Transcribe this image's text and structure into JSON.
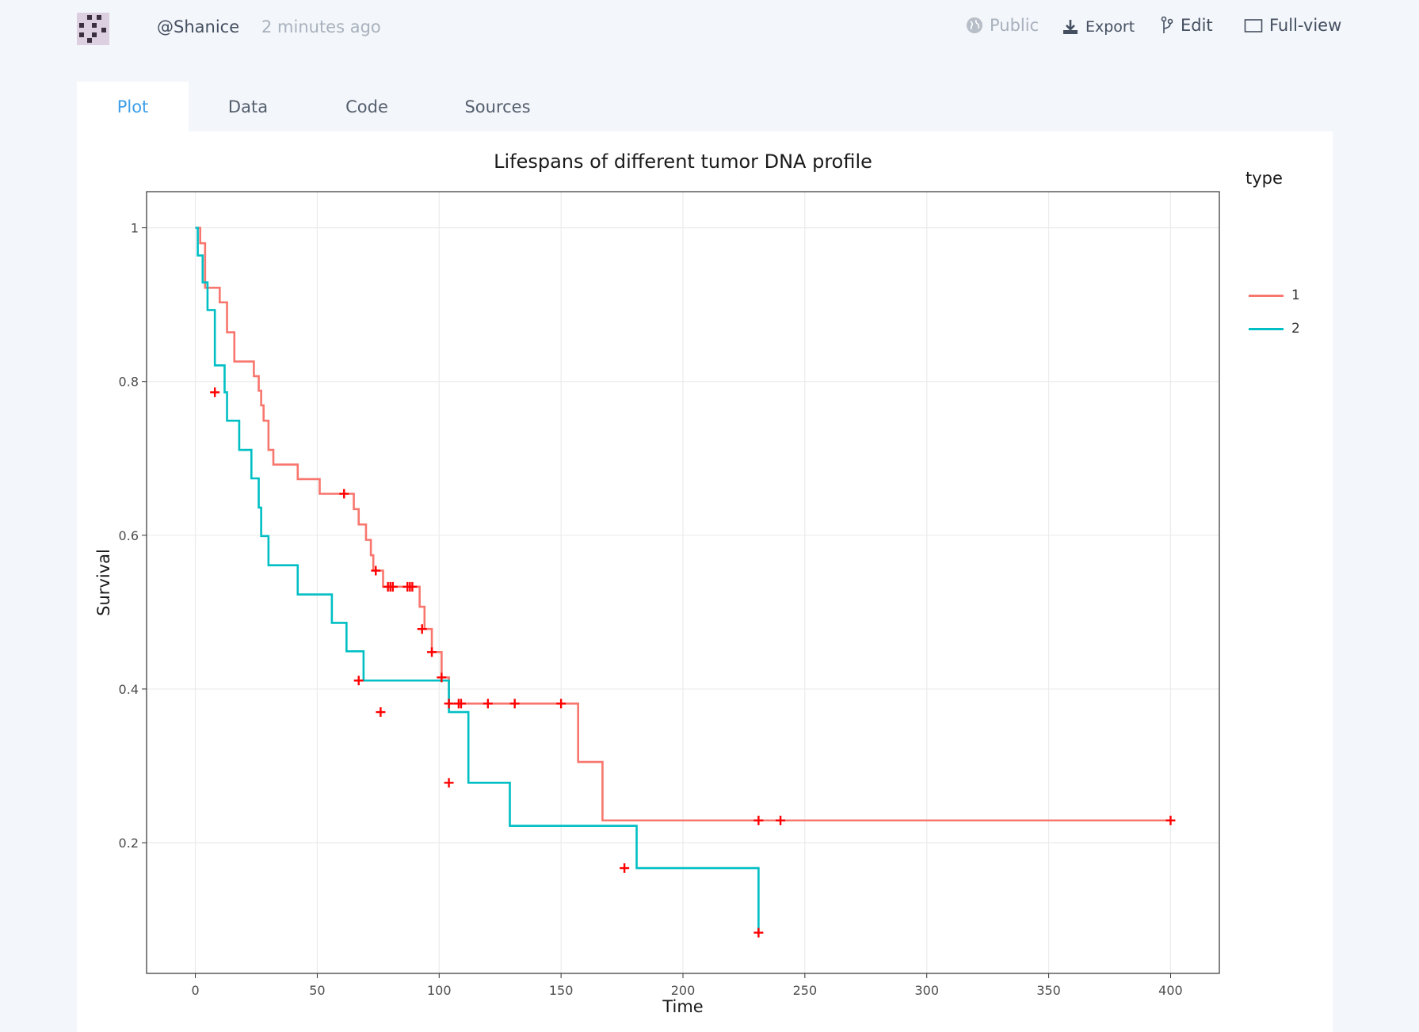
{
  "header": {
    "username": "@Shanice",
    "time_ago": "2 minutes ago",
    "public_label": "Public",
    "export_label": "Export",
    "edit_label": "Edit",
    "fullview_label": "Full-view"
  },
  "tabs": [
    {
      "label": "Plot",
      "active": true
    },
    {
      "label": "Data",
      "active": false
    },
    {
      "label": "Code",
      "active": false
    },
    {
      "label": "Sources",
      "active": false
    }
  ],
  "colors": {
    "accent": "#3d9ee8",
    "series_1": "#f8766d",
    "series_2": "#00bfc4",
    "censor_mark": "#ff0000"
  },
  "chart_data": {
    "type": "line",
    "title": "Lifespans of different tumor DNA profile",
    "xlabel": "Time",
    "ylabel": "Survival",
    "xlim": [
      -20,
      420
    ],
    "ylim": [
      0.03,
      1.047
    ],
    "x_ticks": [
      0,
      50,
      100,
      150,
      200,
      250,
      300,
      350,
      400
    ],
    "x_tick_labels": [
      "0",
      "50",
      "100",
      "150",
      "200",
      "250",
      "300",
      "350",
      "400"
    ],
    "y_ticks": [
      0.2,
      0.4,
      0.6,
      0.8,
      1
    ],
    "y_tick_labels": [
      "0.2",
      "0.4",
      "0.6",
      "0.8",
      "1"
    ],
    "grid": true,
    "legend_title": "type",
    "legend_position": "right",
    "step_plot": true,
    "series": [
      {
        "name": "1",
        "color": "#f8766d",
        "x": [
          0,
          2,
          4,
          10,
          13,
          16,
          24,
          26,
          27,
          28,
          30,
          32,
          42,
          51,
          65,
          67,
          70,
          72,
          73,
          77,
          92,
          94,
          97,
          101,
          104,
          157,
          167,
          400
        ],
        "y": [
          1.0,
          0.98,
          0.922,
          0.903,
          0.864,
          0.826,
          0.807,
          0.788,
          0.769,
          0.749,
          0.711,
          0.692,
          0.673,
          0.654,
          0.634,
          0.614,
          0.594,
          0.574,
          0.554,
          0.533,
          0.507,
          0.478,
          0.448,
          0.415,
          0.381,
          0.305,
          0.229,
          0.229
        ],
        "censor_x": [
          61,
          74,
          79,
          80,
          81,
          87,
          88,
          89,
          93,
          97,
          101,
          104,
          108,
          109,
          120,
          131,
          150,
          231,
          240,
          400
        ],
        "censor_y": [
          0.654,
          0.554,
          0.533,
          0.533,
          0.533,
          0.533,
          0.533,
          0.533,
          0.478,
          0.448,
          0.415,
          0.381,
          0.381,
          0.381,
          0.381,
          0.381,
          0.381,
          0.229,
          0.229,
          0.229
        ]
      },
      {
        "name": "2",
        "color": "#00bfc4",
        "x": [
          0,
          1,
          3,
          5,
          8,
          12,
          13,
          18,
          23,
          26,
          27,
          30,
          42,
          56,
          62,
          69,
          104,
          112,
          129,
          181,
          231
        ],
        "y": [
          1.0,
          0.964,
          0.929,
          0.893,
          0.821,
          0.786,
          0.749,
          0.711,
          0.674,
          0.636,
          0.599,
          0.561,
          0.523,
          0.486,
          0.449,
          0.411,
          0.37,
          0.278,
          0.222,
          0.167,
          0.083
        ],
        "censor_x": [
          8,
          67,
          76,
          104,
          176,
          231
        ],
        "censor_y": [
          0.786,
          0.411,
          0.37,
          0.278,
          0.167,
          0.083
        ]
      }
    ]
  }
}
